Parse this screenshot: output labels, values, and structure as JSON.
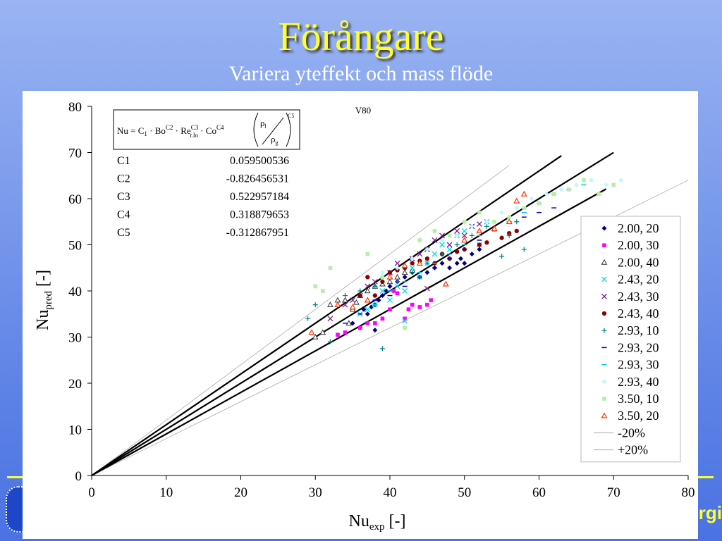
{
  "slide": {
    "title": "Förångare",
    "subtitle": "Variera yteffekt och mass flöde",
    "corner_text": "rgi"
  },
  "colors": {
    "background": "#7d9cec",
    "title": "#ffff2e",
    "accent_line": "#ffff2e"
  },
  "chart_data": {
    "type": "scatter",
    "title": "V80",
    "xlabel": "Nu",
    "xlabel_sub": "exp",
    "xlabel_tail": " [-]",
    "ylabel": "Nu",
    "ylabel_sub": "pred",
    "ylabel_tail": " [-]",
    "xlim": [
      0,
      80
    ],
    "ylim": [
      0,
      80
    ],
    "xticks": [
      0,
      10,
      20,
      30,
      40,
      50,
      60,
      70,
      80
    ],
    "yticks": [
      0,
      10,
      20,
      30,
      40,
      50,
      60,
      70,
      80
    ],
    "legend_position": "right",
    "equation": "Nu = C1 · Bo^C2 · Re_r.lo^C3 · Co^C4 · (ρl/ρg)^C5",
    "constants": [
      {
        "name": "C1",
        "value": "0.059500536"
      },
      {
        "name": "C2",
        "value": "-0.826456531"
      },
      {
        "name": "C3",
        "value": "0.522957184"
      },
      {
        "name": "C4",
        "value": "0.318879653"
      },
      {
        "name": "C5",
        "value": "-0.312867951"
      }
    ],
    "reference_lines": [
      {
        "name": "-20%",
        "slope": 0.8,
        "x_end": 80,
        "color": "#aaaaaa",
        "style": "thin"
      },
      {
        "name": "+20%",
        "slope": 1.2,
        "x_end": 56,
        "color": "#aaaaaa",
        "style": "thin"
      },
      {
        "name": "",
        "slope": 0.9,
        "x_end": 69,
        "color": "#000000",
        "style": "thick"
      },
      {
        "name": "",
        "slope": 1.0,
        "x_end": 70,
        "color": "#000000",
        "style": "thick"
      },
      {
        "name": "",
        "slope": 1.1,
        "x_end": 63,
        "color": "#000000",
        "style": "thick"
      }
    ],
    "series": [
      {
        "name": "2.00, 20",
        "marker": "diamond",
        "color": "#000080",
        "points": [
          [
            35,
            33
          ],
          [
            36,
            32
          ],
          [
            36.5,
            36
          ],
          [
            37,
            35
          ],
          [
            37.5,
            36.5
          ],
          [
            38,
            37
          ],
          [
            38,
            31.5
          ],
          [
            38.5,
            38
          ],
          [
            39,
            39
          ],
          [
            39.5,
            40
          ],
          [
            40,
            41
          ],
          [
            41,
            42
          ],
          [
            42,
            43
          ],
          [
            43,
            44
          ],
          [
            44,
            43
          ],
          [
            45,
            44
          ],
          [
            46,
            45
          ],
          [
            47,
            46
          ],
          [
            48,
            45
          ],
          [
            49,
            46
          ],
          [
            49.5,
            47
          ],
          [
            50,
            46
          ],
          [
            51,
            48
          ],
          [
            52,
            49
          ]
        ]
      },
      {
        "name": "2.00, 30",
        "marker": "square",
        "color": "#ff00ff",
        "points": [
          [
            33,
            30.5
          ],
          [
            34,
            31
          ],
          [
            36,
            32
          ],
          [
            37,
            33
          ],
          [
            38,
            33
          ],
          [
            39,
            34
          ],
          [
            40,
            36
          ],
          [
            40.5,
            40
          ],
          [
            41,
            39.5
          ],
          [
            42,
            34
          ],
          [
            42.5,
            36
          ],
          [
            43,
            37
          ],
          [
            44,
            36.5
          ],
          [
            45,
            37
          ],
          [
            45.5,
            38
          ],
          [
            40,
            44
          ]
        ]
      },
      {
        "name": "2.00, 40",
        "marker": "triangle",
        "color": "#333333",
        "points": [
          [
            30,
            30
          ],
          [
            31,
            31
          ],
          [
            32,
            37
          ],
          [
            33,
            38
          ],
          [
            34,
            38
          ],
          [
            34.5,
            33
          ],
          [
            35,
            36
          ],
          [
            35.5,
            37.5
          ],
          [
            36,
            39
          ],
          [
            37,
            40
          ],
          [
            38,
            41
          ],
          [
            39,
            41.5
          ],
          [
            40,
            42
          ],
          [
            41,
            43
          ],
          [
            42,
            44
          ],
          [
            43,
            44.5
          ]
        ]
      },
      {
        "name": "2.43, 20",
        "marker": "x",
        "color": "#00d8e8",
        "points": [
          [
            36,
            35
          ],
          [
            37,
            36
          ],
          [
            38,
            37
          ],
          [
            39,
            40
          ],
          [
            40,
            38
          ],
          [
            41,
            41
          ],
          [
            42,
            40
          ],
          [
            43,
            45
          ],
          [
            44,
            43
          ],
          [
            45,
            46
          ],
          [
            46,
            48
          ],
          [
            47,
            50
          ],
          [
            48,
            49
          ],
          [
            49,
            52
          ],
          [
            50,
            53
          ],
          [
            51,
            54
          ],
          [
            52,
            50
          ],
          [
            53,
            55
          ],
          [
            42,
            33.5
          ]
        ]
      },
      {
        "name": "2.43, 30",
        "marker": "x",
        "color": "#7a1a8a",
        "points": [
          [
            32,
            34
          ],
          [
            34,
            37
          ],
          [
            35,
            38
          ],
          [
            36,
            39
          ],
          [
            37,
            41
          ],
          [
            38,
            42
          ],
          [
            40,
            44
          ],
          [
            41,
            46
          ],
          [
            43,
            47
          ],
          [
            44,
            48
          ],
          [
            45,
            49
          ],
          [
            46,
            51
          ],
          [
            47,
            52
          ],
          [
            48,
            50
          ],
          [
            49,
            53
          ],
          [
            50,
            52
          ],
          [
            51,
            54
          ],
          [
            52,
            54.5
          ],
          [
            45,
            40.5
          ]
        ]
      },
      {
        "name": "2.43, 40",
        "marker": "circle",
        "color": "#8b0000",
        "points": [
          [
            36,
            39
          ],
          [
            37,
            43
          ],
          [
            38,
            39
          ],
          [
            39,
            42
          ],
          [
            40,
            44
          ],
          [
            41,
            44.5
          ],
          [
            42,
            45
          ],
          [
            43,
            46
          ],
          [
            44,
            46.5
          ],
          [
            45,
            47
          ],
          [
            46,
            46
          ],
          [
            47,
            48
          ],
          [
            48,
            47
          ],
          [
            49,
            48.5
          ],
          [
            50,
            49
          ],
          [
            52,
            50
          ],
          [
            53,
            50.5
          ],
          [
            55,
            51.5
          ],
          [
            56,
            52.5
          ],
          [
            57,
            53
          ]
        ]
      },
      {
        "name": "2.93, 10",
        "marker": "plus",
        "color": "#008080",
        "points": [
          [
            29,
            34
          ],
          [
            30,
            37
          ],
          [
            32,
            29
          ],
          [
            34,
            39
          ],
          [
            36,
            40
          ],
          [
            38,
            41
          ],
          [
            39,
            27.5
          ],
          [
            41,
            42
          ],
          [
            43,
            44
          ],
          [
            45,
            46
          ],
          [
            47,
            48
          ],
          [
            49,
            50
          ],
          [
            51,
            52
          ],
          [
            53,
            54
          ],
          [
            55,
            47.5
          ],
          [
            56,
            52
          ],
          [
            57,
            55
          ],
          [
            58,
            49
          ]
        ]
      },
      {
        "name": "2.93, 20",
        "marker": "dash",
        "color": "#0000cc",
        "points": [
          [
            34,
            33
          ],
          [
            36,
            35
          ],
          [
            38,
            38
          ],
          [
            40,
            39
          ],
          [
            42,
            41
          ],
          [
            44,
            43
          ],
          [
            46,
            45
          ],
          [
            48,
            47
          ],
          [
            50,
            49
          ],
          [
            52,
            51
          ],
          [
            54,
            53
          ],
          [
            56,
            55
          ],
          [
            58,
            56
          ],
          [
            60,
            57
          ],
          [
            62,
            58
          ]
        ]
      },
      {
        "name": "2.93, 30",
        "marker": "dash",
        "color": "#00bfff",
        "points": [
          [
            38,
            37
          ],
          [
            40,
            40
          ],
          [
            42,
            42
          ],
          [
            44,
            44
          ],
          [
            46,
            46
          ],
          [
            48,
            48
          ],
          [
            50,
            50
          ],
          [
            52,
            52
          ],
          [
            54,
            53
          ],
          [
            56,
            55
          ],
          [
            58,
            57
          ],
          [
            60,
            59
          ],
          [
            62,
            61
          ],
          [
            64,
            62
          ],
          [
            66,
            63
          ]
        ]
      },
      {
        "name": "2.93, 40",
        "marker": "diamond",
        "color": "#bff6ff",
        "points": [
          [
            39,
            44
          ],
          [
            41,
            45
          ],
          [
            43,
            47
          ],
          [
            45,
            49
          ],
          [
            47,
            51
          ],
          [
            49,
            52
          ],
          [
            51,
            54
          ],
          [
            53,
            55
          ],
          [
            55,
            57
          ],
          [
            57,
            58
          ],
          [
            59,
            60
          ],
          [
            61,
            61
          ],
          [
            63,
            62
          ],
          [
            65,
            63
          ],
          [
            67,
            64
          ],
          [
            69,
            63
          ],
          [
            71,
            64
          ]
        ]
      },
      {
        "name": "3.50, 10",
        "marker": "square",
        "color": "#b3f0a6",
        "points": [
          [
            30,
            41
          ],
          [
            31,
            40
          ],
          [
            32,
            45
          ],
          [
            37,
            48
          ],
          [
            39,
            43
          ],
          [
            42,
            32
          ],
          [
            44,
            51
          ],
          [
            46,
            53
          ],
          [
            48,
            52
          ],
          [
            50,
            55
          ],
          [
            52,
            57
          ],
          [
            54,
            55
          ],
          [
            56,
            56
          ],
          [
            58,
            58
          ],
          [
            60,
            59
          ],
          [
            62,
            61
          ],
          [
            64,
            62
          ],
          [
            66,
            64
          ],
          [
            68,
            61
          ],
          [
            70,
            63
          ]
        ]
      },
      {
        "name": "3.50, 20",
        "marker": "triangle-open",
        "color": "#ff3300",
        "points": [
          [
            29.5,
            31
          ],
          [
            33,
            37
          ],
          [
            35,
            36.5
          ],
          [
            37,
            38
          ],
          [
            40,
            43
          ],
          [
            42,
            45.5
          ],
          [
            44,
            46
          ],
          [
            47.5,
            41.5
          ],
          [
            50,
            51
          ],
          [
            52,
            53
          ],
          [
            54,
            53.5
          ],
          [
            56,
            55
          ],
          [
            57,
            59.5
          ],
          [
            58,
            61
          ]
        ]
      }
    ]
  }
}
